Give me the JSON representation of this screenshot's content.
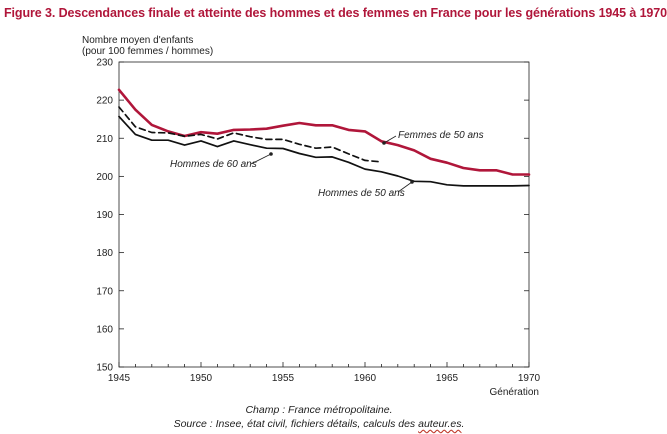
{
  "figure": {
    "title": "Figure 3. Descendances finale et atteinte des hommes et des femmes en France pour les générations 1945 à 1970",
    "source_prefix": "Source : Insee, état civil, fichiers détails, calculs des ",
    "source_flagged_word": "auteur.es",
    "source_suffix": ".",
    "champ": "Champ : France métropolitaine."
  },
  "chart_data": {
    "type": "line",
    "ylabel_line1": "Nombre moyen d'enfants",
    "ylabel_line2": "(pour 100 femmes / hommes)",
    "xlabel": "Génération",
    "xlim": [
      1945,
      1970
    ],
    "ylim": [
      150,
      230
    ],
    "xticks": [
      1945,
      1950,
      1955,
      1960,
      1965,
      1970
    ],
    "yticks": [
      150,
      160,
      170,
      180,
      190,
      200,
      210,
      220,
      230
    ],
    "grid": false,
    "series": [
      {
        "name": "Femmes de 50 ans",
        "color": "#b0163a",
        "style": "solid",
        "x": [
          1945,
          1946,
          1947,
          1948,
          1949,
          1950,
          1951,
          1952,
          1953,
          1954,
          1955,
          1956,
          1957,
          1958,
          1959,
          1960,
          1961,
          1962,
          1963,
          1964,
          1965,
          1966,
          1967,
          1968,
          1969,
          1970
        ],
        "y": [
          222.7,
          217.5,
          213.5,
          211.8,
          210.6,
          211.6,
          211.2,
          212.2,
          212.3,
          212.5,
          213.3,
          214.0,
          213.4,
          213.4,
          212.2,
          211.8,
          209.2,
          208.2,
          206.8,
          204.6,
          203.6,
          202.2,
          201.6,
          201.6,
          200.5,
          200.5
        ]
      },
      {
        "name": "Hommes de 60 ans",
        "color": "#111111",
        "style": "dashed",
        "x": [
          1945,
          1946,
          1947,
          1948,
          1949,
          1950,
          1951,
          1952,
          1953,
          1954,
          1955,
          1956,
          1957,
          1958,
          1959,
          1960,
          1961
        ],
        "y": [
          218.2,
          213.0,
          211.5,
          211.4,
          210.5,
          211.0,
          209.8,
          211.4,
          210.4,
          209.7,
          209.7,
          208.4,
          207.4,
          207.7,
          205.9,
          204.2,
          203.8
        ]
      },
      {
        "name": "Hommes de 50 ans",
        "color": "#111111",
        "style": "solid",
        "x": [
          1945,
          1946,
          1947,
          1948,
          1949,
          1950,
          1951,
          1952,
          1953,
          1954,
          1955,
          1956,
          1957,
          1958,
          1959,
          1960,
          1961,
          1962,
          1963,
          1964,
          1965,
          1966,
          1967,
          1968,
          1969,
          1970
        ],
        "y": [
          215.7,
          211.0,
          209.5,
          209.5,
          208.2,
          209.3,
          207.8,
          209.3,
          208.3,
          207.4,
          207.3,
          206.0,
          205.0,
          205.1,
          203.7,
          201.9,
          201.2,
          200.1,
          198.7,
          198.6,
          197.8,
          197.5,
          197.5,
          197.5,
          197.5,
          197.6
        ]
      }
    ],
    "annotations": [
      {
        "text": "Femmes de 50 ans",
        "series": 0,
        "x": 1961.2,
        "y": 209.5
      },
      {
        "text": "Hommes de 60 ans",
        "series": 1,
        "x": 1954.7,
        "y": 209.8
      },
      {
        "text": "Hommes de 50 ans",
        "series": 2,
        "x": 1962.4,
        "y": 200.1
      }
    ]
  }
}
